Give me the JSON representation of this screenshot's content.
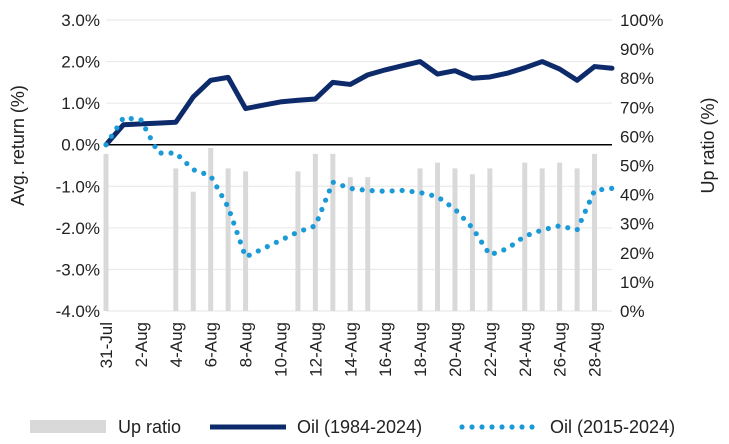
{
  "chart_data": {
    "type": "line",
    "x": [
      "31-Jul",
      "1-Aug",
      "2-Aug",
      "3-Aug",
      "4-Aug",
      "5-Aug",
      "6-Aug",
      "7-Aug",
      "8-Aug",
      "9-Aug",
      "10-Aug",
      "11-Aug",
      "12-Aug",
      "13-Aug",
      "14-Aug",
      "15-Aug",
      "16-Aug",
      "17-Aug",
      "18-Aug",
      "19-Aug",
      "20-Aug",
      "21-Aug",
      "22-Aug",
      "23-Aug",
      "24-Aug",
      "25-Aug",
      "26-Aug",
      "27-Aug",
      "28-Aug",
      "29-Aug"
    ],
    "x_tick_labels": [
      "31-Jul",
      "2-Aug",
      "4-Aug",
      "6-Aug",
      "8-Aug",
      "10-Aug",
      "12-Aug",
      "14-Aug",
      "16-Aug",
      "18-Aug",
      "20-Aug",
      "22-Aug",
      "24-Aug",
      "26-Aug",
      "28-Aug"
    ],
    "ylabel": "Avg. return (%)",
    "y2label": "Up ratio (%)",
    "ylim": [
      -4.0,
      3.0
    ],
    "y_ticks": [
      "3.0%",
      "2.0%",
      "1.0%",
      "0.0%",
      "-1.0%",
      "-2.0%",
      "-3.0%",
      "-4.0%"
    ],
    "y2lim": [
      0,
      100
    ],
    "y2_ticks": [
      "100%",
      "90%",
      "80%",
      "70%",
      "60%",
      "50%",
      "40%",
      "30%",
      "20%",
      "10%",
      "0%"
    ],
    "legend_position": "bottom",
    "colors": {
      "up_ratio": "#d9d9d9",
      "oil_long": "#0d2a6b",
      "oil_short": "#1a9ad6",
      "zero_line": "#000000"
    },
    "series": [
      {
        "name": "Up ratio",
        "kind": "bar",
        "axis": "right",
        "values": [
          54,
          null,
          null,
          null,
          49,
          41,
          56,
          49,
          48,
          null,
          null,
          48,
          54,
          54,
          46,
          46,
          null,
          null,
          49,
          51,
          49,
          47,
          49,
          null,
          51,
          49,
          51,
          49,
          54,
          null
        ]
      },
      {
        "name": "Oil (1984-2024)",
        "kind": "line",
        "axis": "left",
        "values": [
          0.0,
          0.48,
          0.5,
          0.52,
          0.54,
          1.15,
          1.55,
          1.62,
          0.87,
          0.95,
          1.03,
          1.07,
          1.1,
          1.5,
          1.45,
          1.68,
          1.8,
          1.9,
          2.0,
          1.7,
          1.78,
          1.6,
          1.63,
          1.72,
          1.85,
          2.0,
          1.82,
          1.55,
          1.88,
          1.84
        ]
      },
      {
        "name": "Oil (2015-2024)",
        "kind": "dotted-line",
        "axis": "left",
        "values": [
          0.0,
          0.65,
          0.6,
          -0.2,
          -0.2,
          -0.6,
          -0.75,
          -1.5,
          -2.7,
          -2.5,
          -2.3,
          -2.1,
          -1.95,
          -0.9,
          -1.05,
          -1.1,
          -1.12,
          -1.1,
          -1.15,
          -1.25,
          -1.55,
          -2.0,
          -2.65,
          -2.5,
          -2.2,
          -2.05,
          -1.95,
          -2.05,
          -1.1,
          -1.05
        ]
      }
    ]
  }
}
